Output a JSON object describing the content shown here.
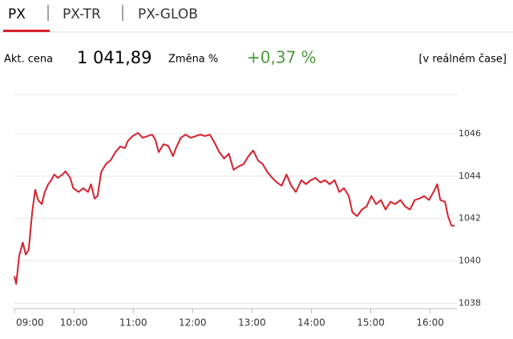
{
  "tabs": [
    "PX",
    "PX-TR",
    "PX-GLOB"
  ],
  "quote": {
    "price_label": "Akt. cena",
    "price": "1 041,89",
    "change_label": "Změna %",
    "change": "+0,37 %",
    "mode": "[v reálném čase]"
  },
  "chart_data": {
    "type": "line",
    "color": "#d6202c",
    "grid": true,
    "x": [
      9.0,
      9.03,
      9.08,
      9.14,
      9.19,
      9.24,
      9.3,
      9.35,
      9.4,
      9.46,
      9.51,
      9.57,
      9.62,
      9.67,
      9.73,
      9.81,
      9.86,
      9.94,
      9.99,
      10.08,
      10.16,
      10.24,
      10.29,
      10.35,
      10.4,
      10.46,
      10.54,
      10.62,
      10.7,
      10.78,
      10.86,
      10.91,
      10.99,
      11.08,
      11.16,
      11.24,
      11.32,
      11.37,
      11.43,
      11.51,
      11.59,
      11.67,
      11.72,
      11.8,
      11.88,
      11.97,
      12.05,
      12.13,
      12.21,
      12.29,
      12.37,
      12.45,
      12.53,
      12.61,
      12.69,
      12.77,
      12.86,
      12.94,
      13.02,
      13.1,
      13.18,
      13.26,
      13.34,
      13.42,
      13.5,
      13.58,
      13.66,
      13.74,
      13.83,
      13.91,
      13.99,
      14.07,
      14.15,
      14.23,
      14.31,
      14.39,
      14.47,
      14.55,
      14.63,
      14.69,
      14.77,
      14.85,
      14.93,
      15.01,
      15.09,
      15.17,
      15.25,
      15.33,
      15.41,
      15.5,
      15.58,
      15.66,
      15.74,
      15.82,
      15.9,
      15.98,
      16.07,
      16.12,
      16.17,
      16.25,
      16.3,
      16.36,
      16.41
    ],
    "values": [
      1039.28,
      1038.91,
      1040.23,
      1040.87,
      1040.3,
      1040.53,
      1042.3,
      1043.36,
      1042.87,
      1042.68,
      1043.25,
      1043.62,
      1043.81,
      1044.08,
      1043.92,
      1044.08,
      1044.23,
      1043.92,
      1043.43,
      1043.25,
      1043.43,
      1043.25,
      1043.62,
      1042.94,
      1043.06,
      1044.19,
      1044.57,
      1044.75,
      1045.13,
      1045.4,
      1045.32,
      1045.66,
      1045.89,
      1046.04,
      1045.81,
      1045.89,
      1045.96,
      1045.74,
      1045.13,
      1045.51,
      1045.43,
      1044.94,
      1045.32,
      1045.81,
      1045.96,
      1045.81,
      1045.89,
      1045.96,
      1045.89,
      1045.96,
      1045.58,
      1045.13,
      1044.83,
      1045.06,
      1044.3,
      1044.45,
      1044.57,
      1044.94,
      1045.21,
      1044.75,
      1044.57,
      1044.19,
      1043.92,
      1043.7,
      1043.55,
      1044.08,
      1043.55,
      1043.25,
      1043.81,
      1043.62,
      1043.81,
      1043.92,
      1043.7,
      1043.81,
      1043.62,
      1043.81,
      1043.25,
      1043.43,
      1043.06,
      1042.3,
      1042.11,
      1042.42,
      1042.57,
      1043.06,
      1042.68,
      1042.87,
      1042.42,
      1042.79,
      1042.68,
      1042.87,
      1042.57,
      1042.42,
      1042.87,
      1042.94,
      1043.06,
      1042.87,
      1043.32,
      1043.62,
      1042.87,
      1042.79,
      1042.11,
      1041.66,
      1041.66
    ],
    "xlim": [
      9,
      16.45
    ],
    "xticks": [
      {
        "value": 9,
        "label": "09:00"
      },
      {
        "value": 10,
        "label": "10:00"
      },
      {
        "value": 11,
        "label": "11:00"
      },
      {
        "value": 12,
        "label": "12:00"
      },
      {
        "value": 13,
        "label": "13:00"
      },
      {
        "value": 14,
        "label": "14:00"
      },
      {
        "value": 15,
        "label": "15:00"
      },
      {
        "value": 16,
        "label": "16:00"
      }
    ],
    "ylim": [
      1037.75,
      1047.85
    ],
    "yticks": [
      1038,
      1040,
      1042,
      1044,
      1046
    ]
  }
}
